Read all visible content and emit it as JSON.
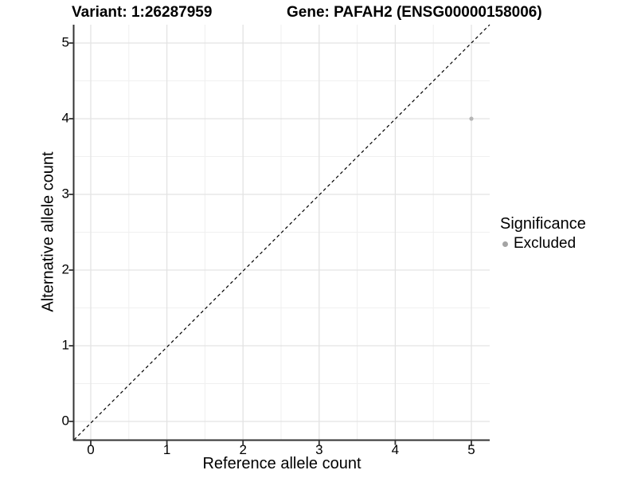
{
  "title": {
    "variant": "Variant: 1:26287959",
    "gene": "Gene: PAFAH2 (ENSG00000158006)"
  },
  "chart_data": {
    "type": "scatter",
    "title": "Variant: 1:26287959   Gene: PAFAH2 (ENSG00000158006)",
    "xlabel": "Reference allele count",
    "ylabel": "Alternative allele count",
    "xlim": [
      -0.22,
      5.24
    ],
    "ylim": [
      -0.25,
      5.24
    ],
    "xticks": [
      0,
      1,
      2,
      3,
      4,
      5
    ],
    "yticks": [
      0,
      1,
      2,
      3,
      4,
      5
    ],
    "minor_gridlines": [
      0.5,
      1.5,
      2.5,
      3.5,
      4.5
    ],
    "grid": "on",
    "series": [
      {
        "name": "Excluded",
        "color": "#b5b5b5",
        "point_radius": 2.6,
        "points": [
          {
            "x": 5,
            "y": 4
          }
        ]
      }
    ],
    "reference_line": {
      "type": "identity y=x",
      "style": "dashed",
      "color": "#000000"
    },
    "legend": {
      "title": "Significance",
      "position": "right",
      "items": [
        {
          "label": "Excluded",
          "color": "#a4a4a4"
        }
      ]
    }
  },
  "colors": {
    "background": "#ffffff",
    "grid_major": "#e3e3e3",
    "grid_minor": "#f0f0f0",
    "axis": "#333333",
    "text": "#000000"
  }
}
